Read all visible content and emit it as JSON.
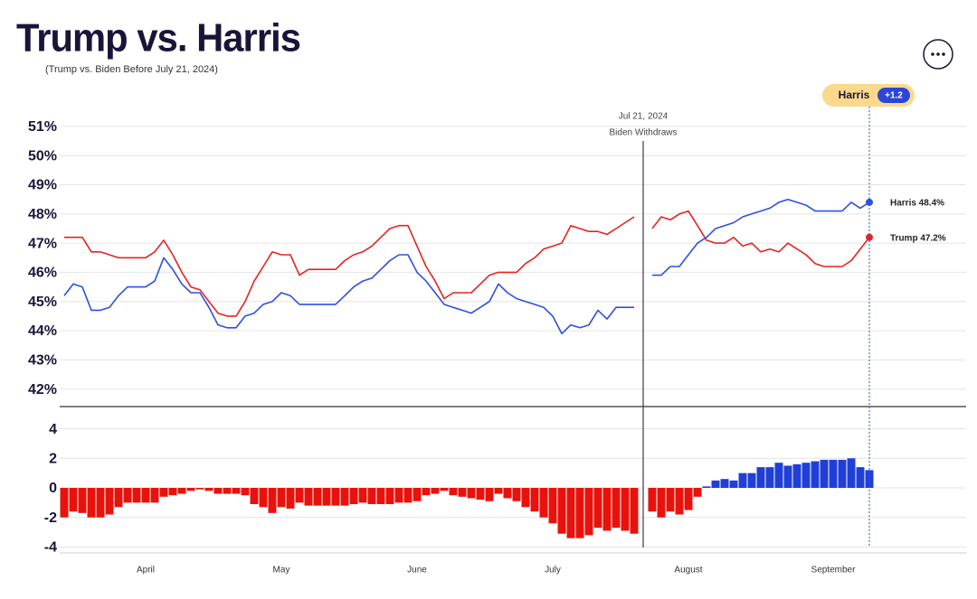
{
  "chart_data": [
    {
      "type": "line",
      "title": "Trump vs. Harris",
      "subtitle": "(Trump vs. Biden Before July 21, 2024)",
      "annotation": {
        "date": "Jul 21, 2024",
        "text": "Biden Withdraws"
      },
      "ylim": [
        41.4,
        51.4
      ],
      "yticks": [
        {
          "value": 42,
          "label": "42%"
        },
        {
          "value": 43,
          "label": "43%"
        },
        {
          "value": 44,
          "label": "44%"
        },
        {
          "value": 45,
          "label": "45%"
        },
        {
          "value": 46,
          "label": "46%"
        },
        {
          "value": 47,
          "label": "47%"
        },
        {
          "value": 48,
          "label": "48%"
        },
        {
          "value": 49,
          "label": "49%"
        },
        {
          "value": 50,
          "label": "50%"
        },
        {
          "value": 51,
          "label": "51%"
        }
      ],
      "grid": true,
      "series": [
        {
          "color": "#e8231f",
          "end_label": "Trump 47.2%",
          "values": [
            47.2,
            47.2,
            47.2,
            46.7,
            46.7,
            46.6,
            46.5,
            46.5,
            46.5,
            46.5,
            46.7,
            47.1,
            46.6,
            46.0,
            45.5,
            45.4,
            45.0,
            44.6,
            44.5,
            44.5,
            45.0,
            45.7,
            46.2,
            46.7,
            46.6,
            46.6,
            45.9,
            46.1,
            46.1,
            46.1,
            46.1,
            46.4,
            46.6,
            46.7,
            46.9,
            47.2,
            47.5,
            47.6,
            47.6,
            46.9,
            46.2,
            45.7,
            45.1,
            45.3,
            45.3,
            45.3,
            45.6,
            45.9,
            46.0,
            46.0,
            46.0,
            46.3,
            46.5,
            46.8,
            46.9,
            47.0,
            47.6,
            47.5,
            47.4,
            47.4,
            47.3,
            47.5,
            47.7,
            47.9,
            null,
            47.5,
            47.9,
            47.8,
            48.0,
            48.1,
            47.6,
            47.1,
            47.0,
            47.0,
            47.2,
            46.9,
            47.0,
            46.7,
            46.8,
            46.7,
            47.0,
            46.8,
            46.6,
            46.3,
            46.2,
            46.2,
            46.2,
            46.4,
            46.8,
            47.2,
            null,
            null,
            null,
            null,
            null,
            null,
            null,
            null,
            null,
            null
          ]
        },
        {
          "color": "#2d50e0",
          "end_label": "Harris 48.4%",
          "values": [
            45.2,
            45.6,
            45.5,
            44.7,
            44.7,
            44.8,
            45.2,
            45.5,
            45.5,
            45.5,
            45.7,
            46.5,
            46.1,
            45.6,
            45.3,
            45.3,
            44.8,
            44.2,
            44.1,
            44.1,
            44.5,
            44.6,
            44.9,
            45.0,
            45.3,
            45.2,
            44.9,
            44.9,
            44.9,
            44.9,
            44.9,
            45.2,
            45.5,
            45.7,
            45.8,
            46.1,
            46.4,
            46.6,
            46.6,
            46.0,
            45.7,
            45.3,
            44.9,
            44.8,
            44.7,
            44.6,
            44.8,
            45.0,
            45.6,
            45.3,
            45.1,
            45.0,
            44.9,
            44.8,
            44.5,
            43.9,
            44.2,
            44.1,
            44.2,
            44.7,
            44.4,
            44.8,
            44.8,
            44.8,
            null,
            45.9,
            45.9,
            46.2,
            46.2,
            46.6,
            47.0,
            47.2,
            47.5,
            47.6,
            47.7,
            47.9,
            48.0,
            48.1,
            48.2,
            48.4,
            48.5,
            48.4,
            48.3,
            48.1,
            48.1,
            48.1,
            48.1,
            48.4,
            48.2,
            48.4,
            null,
            null,
            null,
            null,
            null,
            null,
            null,
            null,
            null,
            null
          ]
        }
      ]
    },
    {
      "type": "bar",
      "categories": [
        null,
        null,
        null,
        null,
        null,
        null,
        null,
        null,
        null,
        "April",
        null,
        null,
        null,
        null,
        null,
        null,
        null,
        null,
        null,
        null,
        null,
        null,
        null,
        null,
        "May",
        null,
        null,
        null,
        null,
        null,
        null,
        null,
        null,
        null,
        null,
        null,
        null,
        null,
        null,
        "June",
        null,
        null,
        null,
        null,
        null,
        null,
        null,
        null,
        null,
        null,
        null,
        null,
        null,
        null,
        "July",
        null,
        null,
        null,
        null,
        null,
        null,
        null,
        null,
        null,
        null,
        null,
        null,
        null,
        null,
        "August",
        null,
        null,
        null,
        null,
        null,
        null,
        null,
        null,
        null,
        null,
        null,
        null,
        null,
        null,
        null,
        "September",
        null,
        null,
        null,
        null,
        null,
        null,
        null,
        null,
        null,
        null,
        null,
        null,
        null,
        null
      ],
      "values": [
        -2.0,
        -1.6,
        -1.7,
        -2.0,
        -2.0,
        -1.8,
        -1.3,
        -1.0,
        -1.0,
        -1.0,
        -1.0,
        -0.6,
        -0.5,
        -0.4,
        -0.2,
        -0.1,
        -0.2,
        -0.4,
        -0.4,
        -0.4,
        -0.5,
        -1.1,
        -1.3,
        -1.7,
        -1.3,
        -1.4,
        -1.0,
        -1.2,
        -1.2,
        -1.2,
        -1.2,
        -1.2,
        -1.1,
        -1.0,
        -1.1,
        -1.1,
        -1.1,
        -1.0,
        -1.0,
        -0.9,
        -0.5,
        -0.4,
        -0.2,
        -0.5,
        -0.6,
        -0.7,
        -0.8,
        -0.9,
        -0.4,
        -0.7,
        -0.9,
        -1.3,
        -1.6,
        -2.0,
        -2.4,
        -3.1,
        -3.4,
        -3.4,
        -3.2,
        -2.7,
        -2.9,
        -2.7,
        -2.9,
        -3.1,
        null,
        -1.6,
        -2.0,
        -1.6,
        -1.8,
        -1.5,
        -0.6,
        0.1,
        0.5,
        0.6,
        0.5,
        1.0,
        1.0,
        1.4,
        1.4,
        1.7,
        1.5,
        1.6,
        1.7,
        1.8,
        1.9,
        1.9,
        1.9,
        2.0,
        1.4,
        1.2,
        null,
        null,
        null,
        null,
        null,
        null,
        null,
        null,
        null,
        null
      ],
      "positive_color": "#1f3fd6",
      "negative_color": "#e8120c",
      "ylim": [
        -4.4,
        5.5
      ],
      "yticks": [
        -4,
        -2,
        0,
        2,
        4
      ],
      "grid": true,
      "badge": {
        "leader": "Harris",
        "margin": "+1.2"
      }
    }
  ]
}
